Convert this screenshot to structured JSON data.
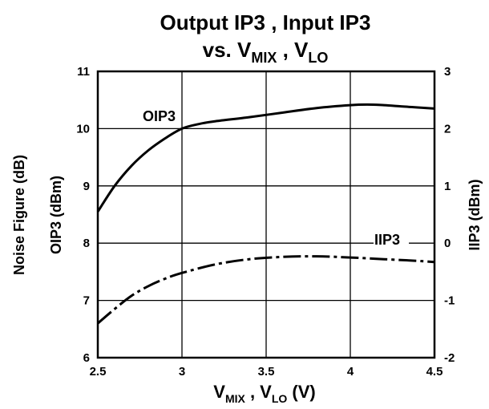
{
  "chart_data": {
    "type": "line",
    "title": {
      "line1": "Output IP3 , Input IP3",
      "line2_prefix": "vs. V",
      "line2_sub1": "MIX",
      "line2_mid": " , V",
      "line2_sub2": "LO"
    },
    "xlabel": {
      "v1": "V",
      "sub1": "MIX",
      "mid": " , V",
      "sub2": "LO",
      "suffix": " (V)"
    },
    "ylabel_left": {
      "line1": "Noise Figure (dB)",
      "line2": "OIP3 (dBm)"
    },
    "ylabel_right": "IIP3 (dBm)",
    "xlim": [
      2.5,
      4.5
    ],
    "ylim_left": [
      6,
      11
    ],
    "ylim_right": [
      -2,
      3
    ],
    "x_ticks": [
      "2.5",
      "3",
      "3.5",
      "4",
      "4.5"
    ],
    "y_ticks_left": [
      "6",
      "7",
      "8",
      "9",
      "10",
      "11"
    ],
    "y_ticks_right": [
      "-2",
      "-1",
      "0",
      "1",
      "2",
      "3"
    ],
    "grid": true,
    "series": [
      {
        "name": "OIP3",
        "axis": "left",
        "style": "solid",
        "x": [
          2.5,
          2.6,
          2.7,
          2.8,
          2.9,
          3.0,
          3.1,
          3.2,
          3.4,
          3.6,
          3.8,
          4.0,
          4.1,
          4.2,
          4.3,
          4.4,
          4.5
        ],
        "y": [
          8.55,
          9.0,
          9.35,
          9.62,
          9.83,
          10.0,
          10.08,
          10.13,
          10.2,
          10.28,
          10.36,
          10.41,
          10.42,
          10.41,
          10.39,
          10.37,
          10.35
        ]
      },
      {
        "name": "IIP3",
        "axis": "right",
        "style": "dashed",
        "x": [
          2.5,
          2.6,
          2.7,
          2.8,
          2.9,
          3.0,
          3.2,
          3.4,
          3.6,
          3.8,
          4.0,
          4.2,
          4.4,
          4.5
        ],
        "y": [
          -1.4,
          -1.15,
          -0.92,
          -0.75,
          -0.62,
          -0.52,
          -0.37,
          -0.28,
          -0.24,
          -0.23,
          -0.25,
          -0.28,
          -0.31,
          -0.33
        ]
      }
    ]
  }
}
